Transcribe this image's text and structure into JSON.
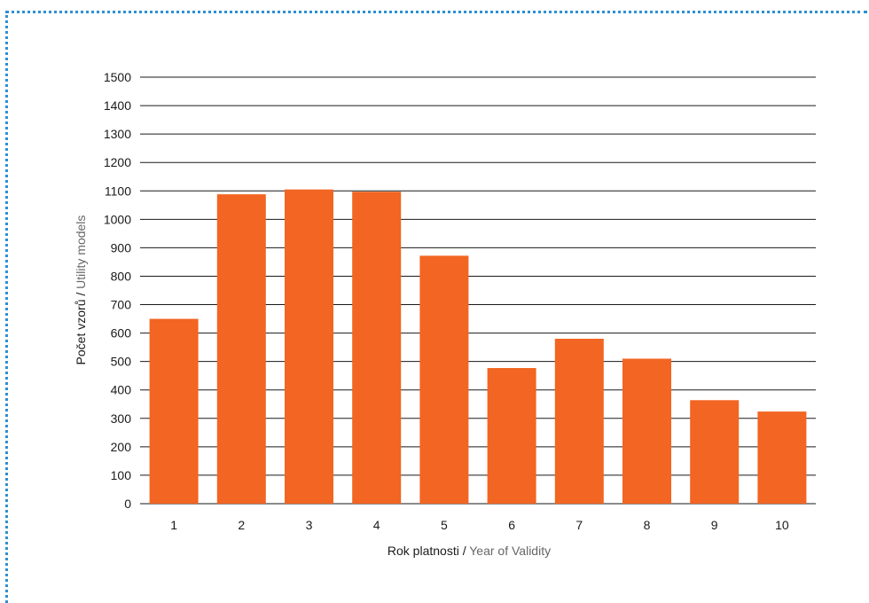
{
  "chart_data": {
    "type": "bar",
    "categories": [
      "1",
      "2",
      "3",
      "4",
      "5",
      "6",
      "7",
      "8",
      "9",
      "10"
    ],
    "values": [
      650,
      1088,
      1105,
      1097,
      872,
      477,
      580,
      510,
      364,
      324
    ],
    "xlabel": {
      "main": "Rok platnosti",
      "separator": " / ",
      "secondary": "Year of Validity"
    },
    "ylabel": {
      "main": "Počet vzorů",
      "separator": " / ",
      "secondary": "Utility models"
    },
    "yticks": [
      0,
      100,
      200,
      300,
      400,
      500,
      600,
      700,
      800,
      900,
      1000,
      1100,
      1200,
      1300,
      1400,
      1500
    ],
    "ylim": [
      0,
      1500
    ],
    "grid": true,
    "colors": {
      "bar": "#f26522",
      "grid": "#1a1a1a",
      "frame_dots": "#2f8fd3"
    }
  }
}
